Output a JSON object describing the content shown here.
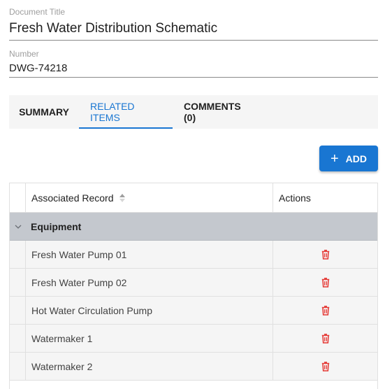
{
  "document_title": {
    "label": "Document Title",
    "value": "Fresh Water Distribution Schematic"
  },
  "number": {
    "label": "Number",
    "value": "DWG-74218"
  },
  "tabs": [
    {
      "label": "SUMMARY",
      "active": false
    },
    {
      "label": "RELATED ITEMS",
      "active": true
    },
    {
      "label": "COMMENTS (0)",
      "active": false
    }
  ],
  "add_button": {
    "label": "ADD",
    "icon": "plus-icon"
  },
  "grid": {
    "columns": {
      "record": "Associated Record",
      "actions": "Actions"
    },
    "group": {
      "label": "Equipment",
      "expanded": true
    },
    "rows": [
      {
        "record": "Fresh Water Pump 01"
      },
      {
        "record": "Fresh Water Pump 02"
      },
      {
        "record": "Hot Water Circulation Pump"
      },
      {
        "record": "Watermaker 1"
      },
      {
        "record": "Watermaker 2"
      }
    ]
  },
  "colors": {
    "accent": "#1976d2",
    "delete": "#e53935",
    "group_bg": "#c4c8ce"
  }
}
